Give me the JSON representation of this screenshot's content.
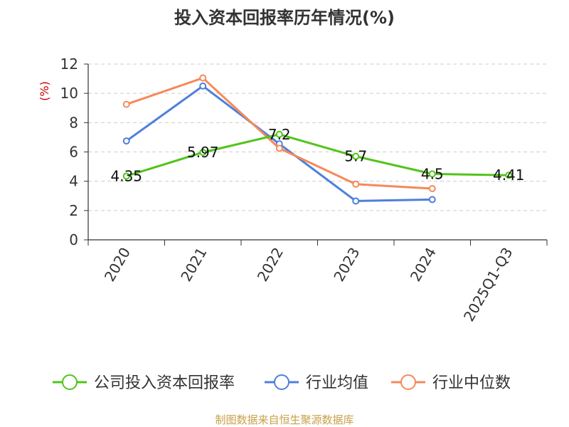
{
  "chart_data": {
    "type": "line",
    "title": "投入资本回报率历年情况(%)",
    "ylabel": "(%)",
    "ylim": [
      0,
      12
    ],
    "yticks": [
      "0",
      "2",
      "4",
      "6",
      "8",
      "10",
      "12"
    ],
    "categories": [
      "2020",
      "2021",
      "2022",
      "2023",
      "2024",
      "2025Q1-Q3"
    ],
    "grid": true,
    "legend_position": "bottom",
    "series": [
      {
        "name": "公司投入资本回报率",
        "color": "#52c41a",
        "values": [
          4.35,
          5.97,
          7.2,
          5.7,
          4.5,
          4.41
        ],
        "labels": [
          "4.35",
          "5.97",
          "7.2",
          "5.7",
          "4.5",
          "4.41"
        ]
      },
      {
        "name": "行业均值",
        "color": "#4e7fdc",
        "values": [
          6.75,
          10.5,
          6.55,
          2.65,
          2.75,
          null
        ]
      },
      {
        "name": "行业中位数",
        "color": "#f5895b",
        "values": [
          9.25,
          11.05,
          6.25,
          3.8,
          3.5,
          null
        ]
      }
    ],
    "source": "制图数据来自恒生聚源数据库",
    "colors": {
      "unit": "#cc0000",
      "source": "#c8a04a",
      "axis": "#333333",
      "grid": "#cccccc"
    }
  }
}
